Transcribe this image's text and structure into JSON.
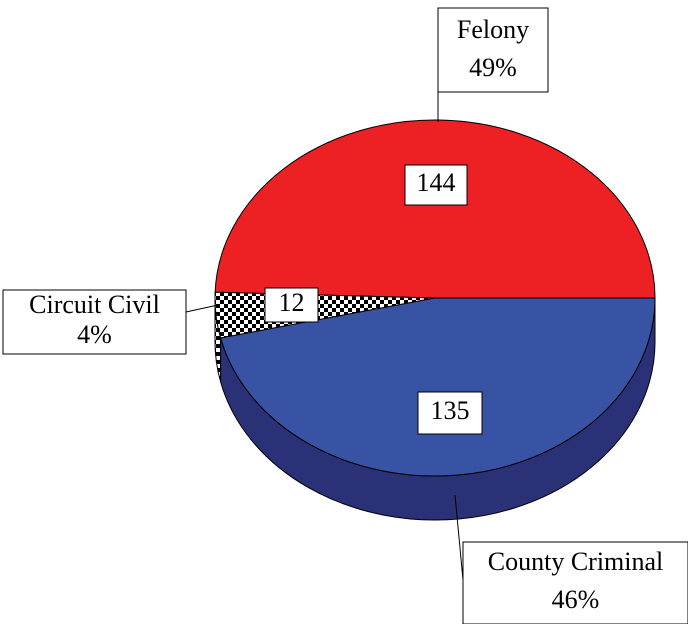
{
  "chart_data": {
    "type": "pie",
    "categories": [
      "Felony",
      "Circuit Civil",
      "County Criminal"
    ],
    "values": [
      144,
      12,
      135
    ],
    "percent_labels": [
      "49%",
      "4%",
      "46%"
    ],
    "colors": [
      "#ed2024",
      "checkered",
      "#3953a4"
    ],
    "side_colors": [
      "#a51518",
      "checkered",
      "#2b3177"
    ]
  }
}
